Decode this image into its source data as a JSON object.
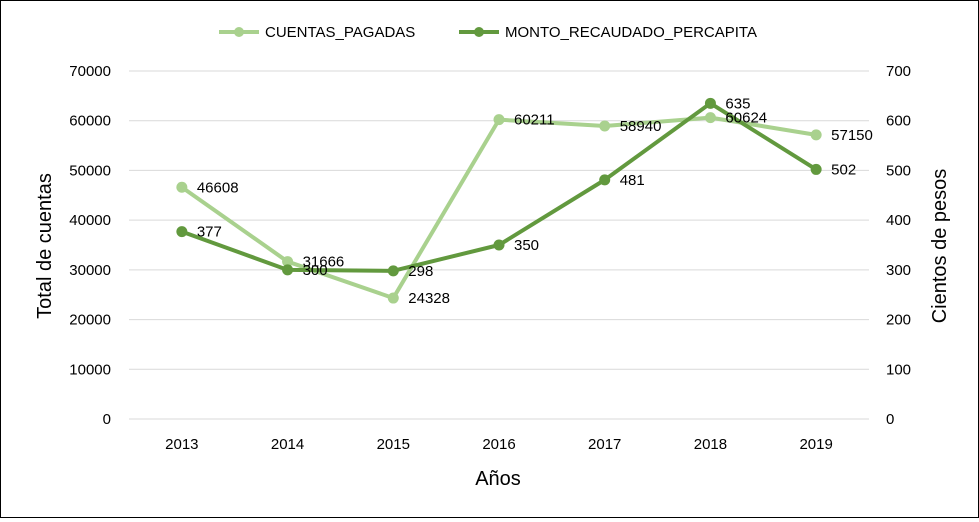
{
  "chart_data": {
    "type": "line",
    "title": "",
    "categories": [
      "2013",
      "2014",
      "2015",
      "2016",
      "2017",
      "2018",
      "2019"
    ],
    "xlabel": "Años",
    "ylabel_left": "Total de cuentas",
    "ylabel_right": "Cientos de pesos",
    "ylim_left": [
      0,
      70000
    ],
    "ylim_right": [
      0,
      700
    ],
    "yticks_left": [
      "0",
      "10000",
      "20000",
      "30000",
      "40000",
      "50000",
      "60000",
      "70000"
    ],
    "yticks_right": [
      "0",
      "100",
      "200",
      "300",
      "400",
      "500",
      "600",
      "700"
    ],
    "grid": true,
    "legend_position": "top",
    "series": [
      {
        "name": "CUENTAS_PAGADAS",
        "axis": "left",
        "color": "#a9d18e",
        "values": [
          46608,
          31666,
          24328,
          60211,
          58940,
          60624,
          57150
        ],
        "labels": [
          "46608",
          "31666",
          "24328",
          "60211",
          "58940",
          "60624",
          "57150"
        ]
      },
      {
        "name": "MONTO_RECAUDADO_PERCAPITA",
        "axis": "right",
        "color": "#62993e",
        "values": [
          377,
          300,
          298,
          350,
          481,
          635,
          502
        ],
        "labels": [
          "377",
          "300",
          "298",
          "350",
          "481",
          "635",
          "502"
        ]
      }
    ]
  }
}
